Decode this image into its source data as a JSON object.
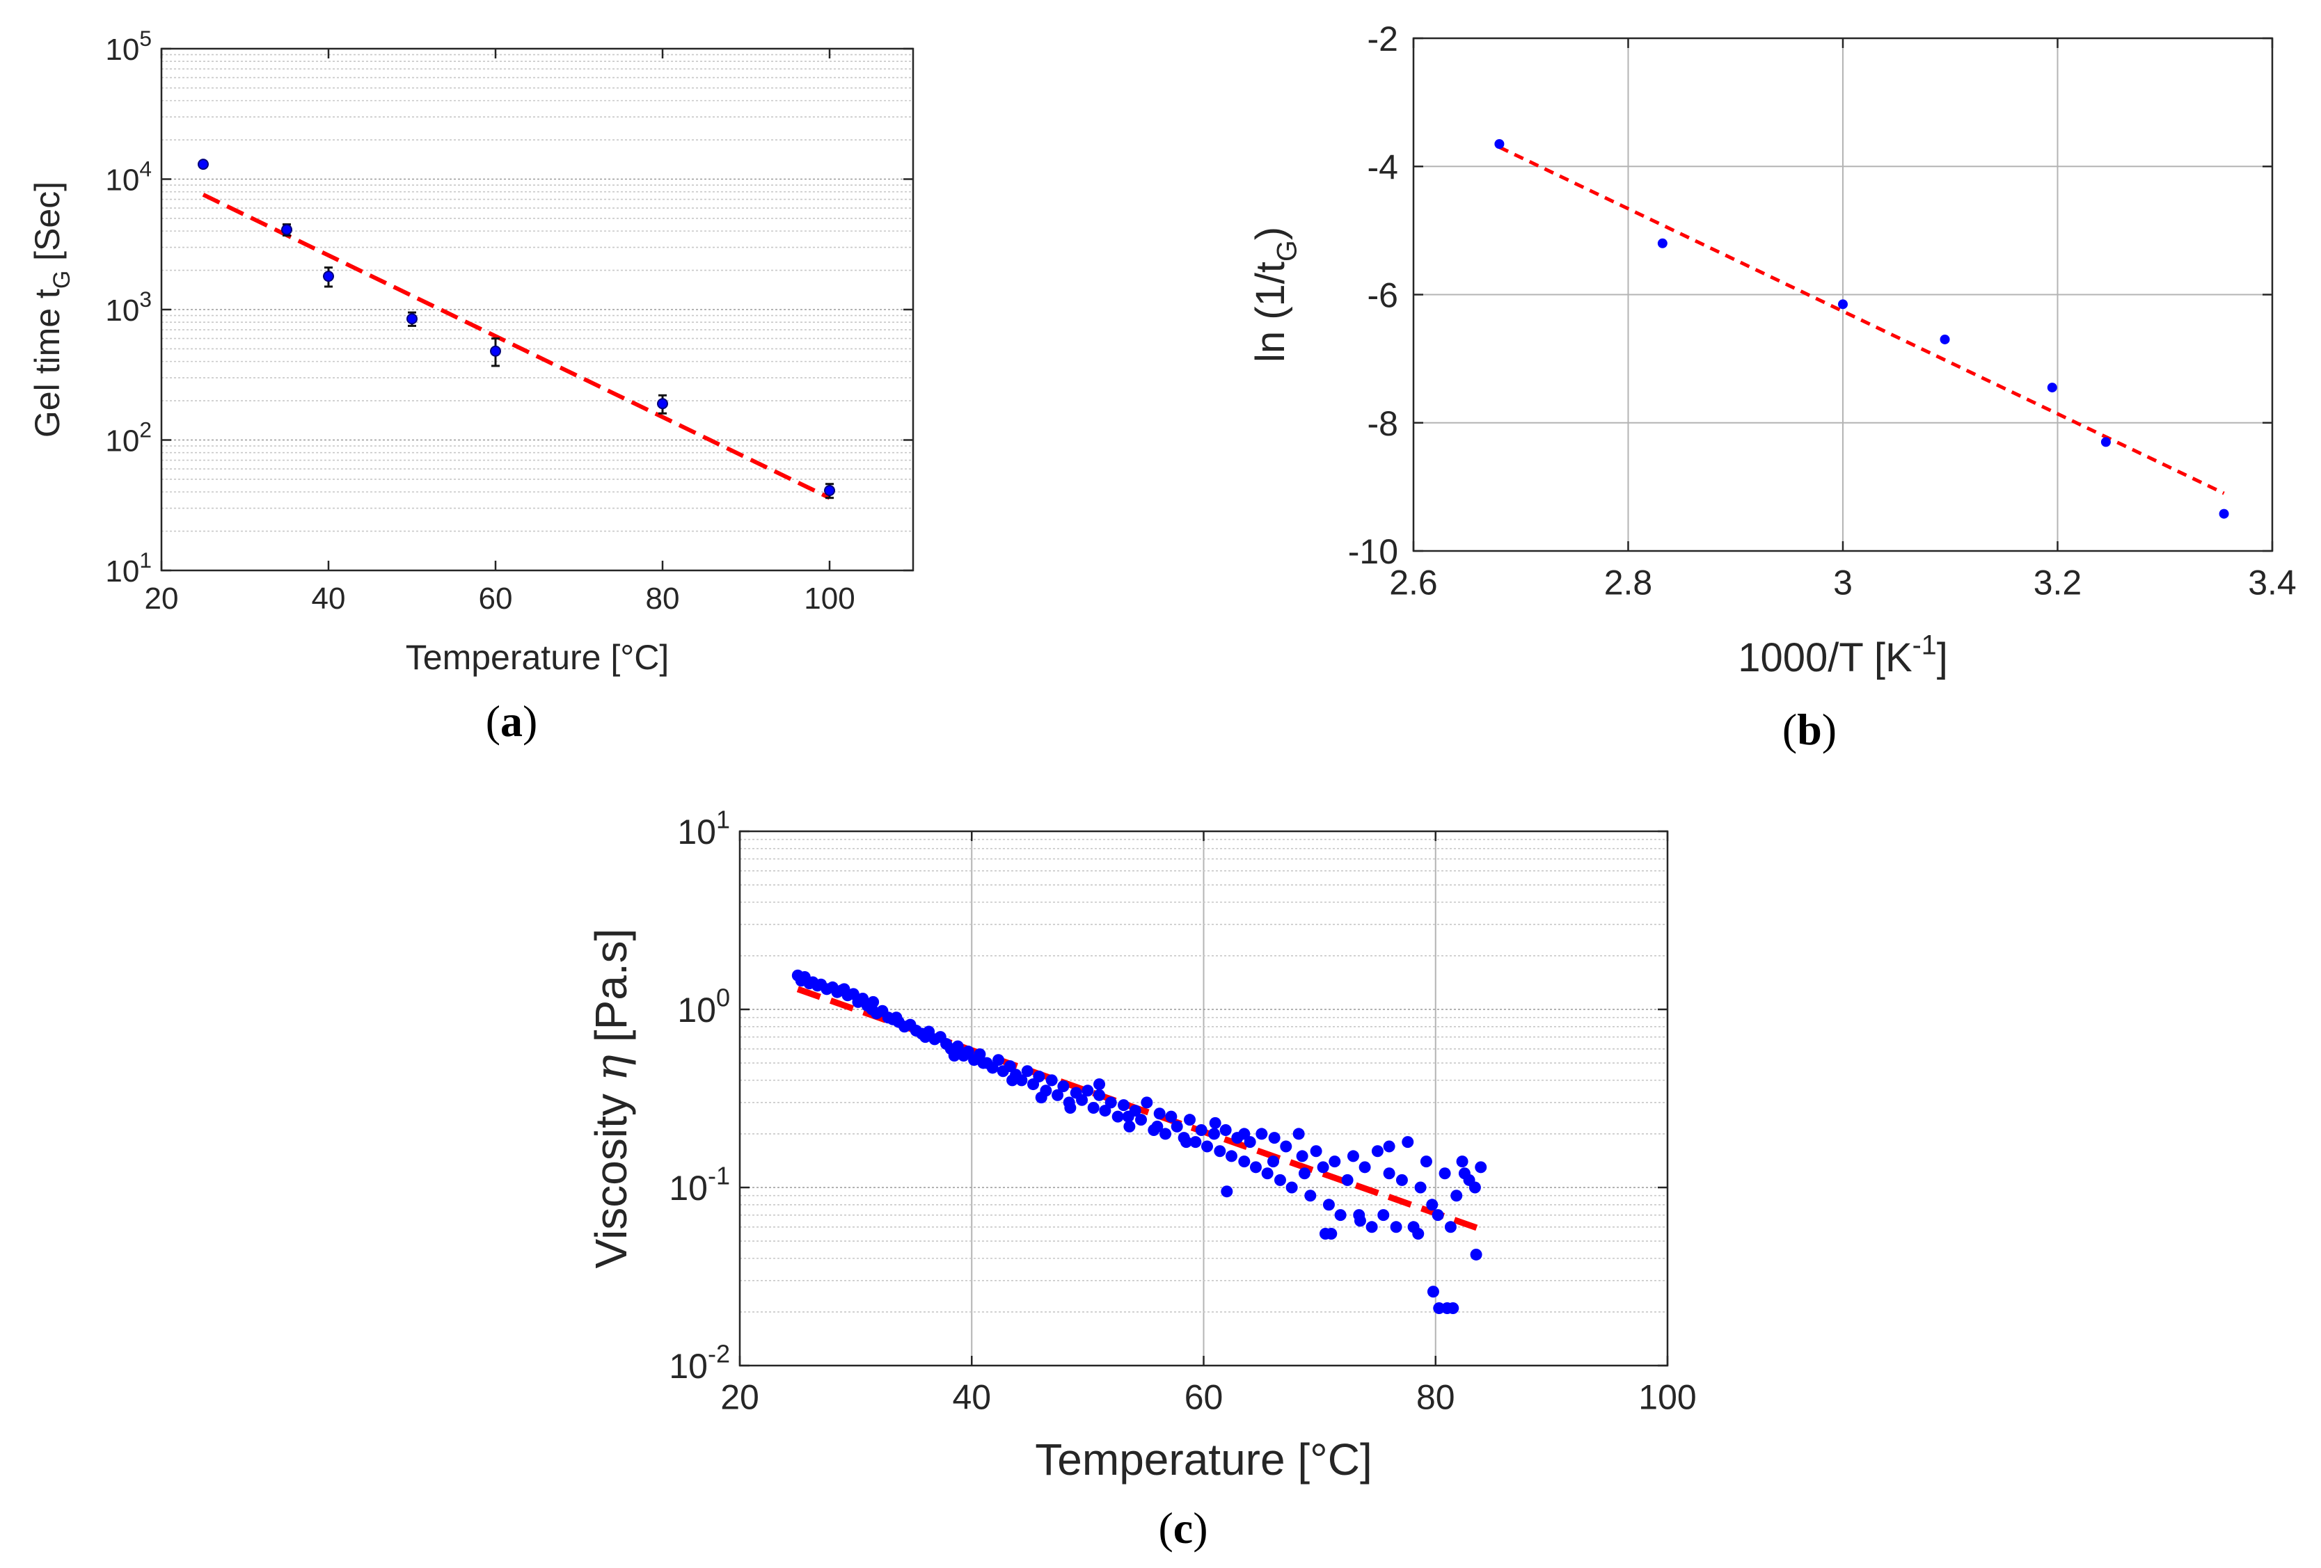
{
  "colors": {
    "marker": "#0000ff",
    "fit": "#ff0000",
    "axis": "#262626",
    "grid": "#b4b4b4"
  },
  "chart_data": [
    {
      "id": "a",
      "type": "scatter",
      "caption": "(a)",
      "caption_letter": "a",
      "xlabel": "Temperature [°C]",
      "ylabel": {
        "main": "Gel time t",
        "sub": "G",
        "tail": " [Sec]"
      },
      "xscale": "linear",
      "yscale": "log",
      "xlim": [
        20,
        110
      ],
      "ylim": [
        10,
        100000
      ],
      "xticks": [
        20,
        40,
        60,
        80,
        100
      ],
      "xtick_labels": [
        "20",
        "40",
        "60",
        "80",
        "100"
      ],
      "yticks": [
        10,
        100,
        1000,
        10000,
        100000
      ],
      "ytick_labels": [
        {
          "base": "10",
          "exp": "1"
        },
        {
          "base": "10",
          "exp": "2"
        },
        {
          "base": "10",
          "exp": "3"
        },
        {
          "base": "10",
          "exp": "4"
        },
        {
          "base": "10",
          "exp": "5"
        }
      ],
      "grid": "minor-y",
      "series": [
        {
          "name": "measured",
          "x": [
            25,
            35,
            40,
            50,
            60,
            80,
            100
          ],
          "y": [
            13000,
            4100,
            1800,
            850,
            480,
            190,
            41
          ],
          "error_low": [
            12500,
            3700,
            1500,
            750,
            370,
            160,
            36
          ],
          "error_high": [
            13500,
            4500,
            2100,
            950,
            600,
            220,
            46
          ]
        },
        {
          "name": "fit",
          "style": "dashed",
          "x": [
            25,
            100
          ],
          "y": [
            7600,
            36
          ]
        }
      ]
    },
    {
      "id": "b",
      "type": "scatter",
      "caption": "(b)",
      "caption_letter": "b",
      "xlabel": {
        "main": "1000/T [K",
        "sup": "-1",
        "tail": "]"
      },
      "ylabel": {
        "main": "ln (1/t",
        "sub": "G",
        "tail": ")"
      },
      "xscale": "linear",
      "yscale": "linear",
      "xlim": [
        2.6,
        3.4
      ],
      "ylim": [
        -10,
        -2
      ],
      "xticks": [
        2.6,
        2.8,
        3.0,
        3.2,
        3.4
      ],
      "xtick_labels": [
        "2.6",
        "2.8",
        "3",
        "3.2",
        "3.4"
      ],
      "yticks": [
        -10,
        -8,
        -6,
        -4,
        -2
      ],
      "ytick_labels": [
        "-10",
        "-8",
        "-6",
        "-4",
        "-2"
      ],
      "grid": "major",
      "series": [
        {
          "name": "measured",
          "x": [
            2.68,
            2.832,
            3.0,
            3.095,
            3.195,
            3.245,
            3.355
          ],
          "y": [
            -3.65,
            -5.2,
            -6.15,
            -6.7,
            -7.45,
            -8.3,
            -9.42
          ]
        },
        {
          "name": "fit",
          "style": "dashed",
          "x": [
            2.68,
            3.355
          ],
          "y": [
            -3.7,
            -9.1
          ]
        }
      ]
    },
    {
      "id": "c",
      "type": "scatter",
      "caption": "(c)",
      "caption_letter": "c",
      "xlabel": "Temperature [°C]",
      "ylabel": {
        "main": "Viscosity ",
        "greek": "η",
        "tail": " [Pa.s]"
      },
      "xscale": "linear",
      "yscale": "log",
      "xlim": [
        20,
        100
      ],
      "ylim": [
        0.01,
        10
      ],
      "xticks": [
        20,
        40,
        60,
        80,
        100
      ],
      "xtick_labels": [
        "20",
        "40",
        "60",
        "80",
        "100"
      ],
      "yticks": [
        0.01,
        0.1,
        1,
        10
      ],
      "ytick_labels": [
        {
          "base": "10",
          "exp": "-2"
        },
        {
          "base": "10",
          "exp": "-1"
        },
        {
          "base": "10",
          "exp": "0"
        },
        {
          "base": "10",
          "exp": "1"
        }
      ],
      "grid": "major-x-minor-y",
      "series": [
        {
          "name": "measured",
          "x": [
            25.0,
            25.3,
            25.6,
            26.0,
            26.3,
            26.7,
            27.0,
            27.5,
            28.0,
            28.4,
            28.8,
            29.3,
            29.8,
            30.2,
            30.6,
            31.0,
            31.4,
            31.8,
            32.3,
            32.8,
            33.2,
            33.7,
            34.2,
            34.7,
            35.2,
            35.7,
            36.3,
            36.8,
            37.3,
            37.8,
            38.2,
            38.8,
            39.3,
            39.7,
            40.2,
            40.7,
            41.3,
            41.8,
            42.3,
            42.7,
            43.3,
            43.8,
            44.3,
            44.8,
            45.3,
            45.8,
            46.4,
            46.9,
            47.4,
            47.9,
            48.4,
            49.0,
            49.5,
            50.0,
            50.5,
            51.0,
            51.5,
            52.0,
            52.6,
            53.1,
            53.6,
            54.1,
            54.6,
            55.1,
            55.7,
            56.2,
            56.7,
            57.2,
            57.7,
            58.3,
            58.8,
            59.3,
            59.8,
            60.3,
            60.9,
            61.4,
            61.9,
            62.4,
            62.9,
            63.5,
            64.0,
            64.5,
            65.0,
            65.5,
            66.1,
            66.6,
            67.1,
            67.6,
            68.2,
            68.7,
            69.2,
            69.7,
            70.3,
            70.8,
            71.3,
            71.8,
            72.4,
            72.9,
            73.4,
            73.9,
            74.5,
            75.0,
            75.5,
            76.0,
            76.6,
            77.1,
            77.6,
            78.1,
            78.7,
            79.2,
            79.7,
            80.2,
            80.8,
            81.3,
            81.8,
            82.3,
            82.9,
            83.4,
            83.9,
            29.0,
            31.5,
            33.5,
            36.0,
            38.5,
            41.0,
            43.5,
            46.0,
            48.5,
            51.0,
            53.5,
            56.0,
            58.5,
            61.0,
            63.5,
            66.0,
            68.5,
            71.0,
            73.5,
            76.0,
            78.5,
            81.0,
            83.5,
            62.0,
            70.5,
            79.8,
            80.3,
            81.5,
            82.5
          ],
          "y": [
            1.55,
            1.45,
            1.52,
            1.4,
            1.42,
            1.36,
            1.38,
            1.3,
            1.33,
            1.25,
            1.28,
            1.2,
            1.22,
            1.1,
            1.15,
            1.05,
            1.0,
            0.95,
            0.98,
            0.9,
            0.88,
            0.85,
            0.8,
            0.82,
            0.76,
            0.73,
            0.75,
            0.68,
            0.7,
            0.64,
            0.6,
            0.62,
            0.55,
            0.58,
            0.52,
            0.56,
            0.5,
            0.47,
            0.52,
            0.45,
            0.48,
            0.43,
            0.4,
            0.45,
            0.38,
            0.42,
            0.35,
            0.4,
            0.33,
            0.37,
            0.3,
            0.34,
            0.31,
            0.35,
            0.28,
            0.33,
            0.27,
            0.3,
            0.25,
            0.29,
            0.22,
            0.27,
            0.24,
            0.3,
            0.21,
            0.26,
            0.2,
            0.25,
            0.22,
            0.19,
            0.24,
            0.18,
            0.21,
            0.17,
            0.2,
            0.16,
            0.21,
            0.15,
            0.19,
            0.14,
            0.18,
            0.13,
            0.2,
            0.12,
            0.19,
            0.11,
            0.17,
            0.1,
            0.2,
            0.12,
            0.09,
            0.16,
            0.13,
            0.08,
            0.14,
            0.07,
            0.11,
            0.15,
            0.07,
            0.13,
            0.06,
            0.16,
            0.07,
            0.12,
            0.06,
            0.11,
            0.18,
            0.06,
            0.1,
            0.14,
            0.08,
            0.07,
            0.12,
            0.06,
            0.09,
            0.14,
            0.11,
            0.1,
            0.13,
            1.3,
            1.1,
            0.9,
            0.7,
            0.55,
            0.5,
            0.4,
            0.32,
            0.28,
            0.38,
            0.25,
            0.22,
            0.18,
            0.23,
            0.2,
            0.14,
            0.15,
            0.055,
            0.065,
            0.17,
            0.055,
            0.021,
            0.042,
            0.095,
            0.055,
            0.026,
            0.021,
            0.021,
            0.12
          ]
        },
        {
          "name": "fit",
          "style": "dashed",
          "x": [
            25,
            84
          ],
          "y": [
            1.3,
            0.058
          ]
        }
      ]
    }
  ]
}
